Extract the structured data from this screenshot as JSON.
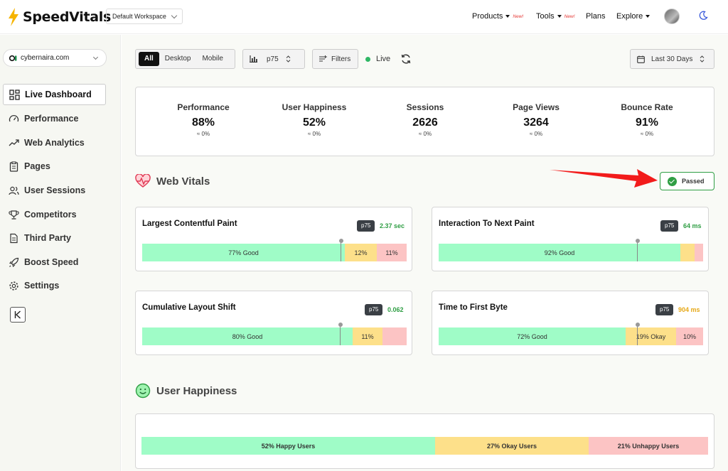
{
  "brand": {
    "name": "SpeedVitals"
  },
  "workspace": {
    "selected": "Default Workspace"
  },
  "nav": {
    "products": "Products",
    "products_badge": "New!",
    "tools": "Tools",
    "tools_badge": "New!",
    "plans": "Plans",
    "explore": "Explore"
  },
  "sidebar": {
    "site": "cybernaira.com",
    "items": [
      {
        "label": "Live Dashboard",
        "icon": "grid-icon"
      },
      {
        "label": "Performance",
        "icon": "gauge-icon"
      },
      {
        "label": "Web Analytics",
        "icon": "trend-icon"
      },
      {
        "label": "Pages",
        "icon": "clipboard-icon"
      },
      {
        "label": "User Sessions",
        "icon": "users-icon"
      },
      {
        "label": "Competitors",
        "icon": "trophy-icon"
      },
      {
        "label": "Third Party",
        "icon": "document-icon"
      },
      {
        "label": "Boost Speed",
        "icon": "rocket-icon"
      },
      {
        "label": "Settings",
        "icon": "gear-icon"
      }
    ]
  },
  "toolbar": {
    "device_tabs": [
      "All",
      "Desktop",
      "Mobile"
    ],
    "percentile": "p75",
    "filters": "Filters",
    "live": "Live",
    "date_range": "Last 30 Days"
  },
  "summary": [
    {
      "label": "Performance",
      "value": "88%",
      "delta": "≈ 0%"
    },
    {
      "label": "User Happiness",
      "value": "52%",
      "delta": "≈ 0%"
    },
    {
      "label": "Sessions",
      "value": "2626",
      "delta": "≈ 0%"
    },
    {
      "label": "Page Views",
      "value": "3264",
      "delta": "≈ 0%"
    },
    {
      "label": "Bounce Rate",
      "value": "91%",
      "delta": "≈ 0%"
    }
  ],
  "web_vitals": {
    "title": "Web Vitals",
    "status": "Passed",
    "status_color": "#2f9e44",
    "cards": [
      {
        "title": "Largest Contentful Paint",
        "percentile": "p75",
        "value": "2.37 sec",
        "value_color": "#2f9e44",
        "segments": [
          {
            "label": "77% Good",
            "pct": 77
          },
          {
            "label": "12%",
            "pct": 12
          },
          {
            "label": "11%",
            "pct": 11
          }
        ],
        "marker_pct": 75.8
      },
      {
        "title": "Interaction To Next Paint",
        "percentile": "p75",
        "value": "64 ms",
        "value_color": "#2f9e44",
        "segments": [
          {
            "label": "92% Good",
            "pct": 92
          },
          {
            "label": "",
            "pct": 5
          },
          {
            "label": "",
            "pct": 3
          }
        ],
        "marker_pct": 75.5
      },
      {
        "title": "Cumulative Layout Shift",
        "percentile": "p75",
        "value": "0.062",
        "value_color": "#2f9e44",
        "segments": [
          {
            "label": "80% Good",
            "pct": 80
          },
          {
            "label": "11%",
            "pct": 11
          },
          {
            "label": "",
            "pct": 9
          }
        ],
        "marker_pct": 75.8
      },
      {
        "title": "Time to First Byte",
        "percentile": "p75",
        "value": "904 ms",
        "value_color": "#e6a817",
        "segments": [
          {
            "label": "72% Good",
            "pct": 72
          },
          {
            "label": "19% Okay",
            "pct": 19
          },
          {
            "label": "10%",
            "pct": 10
          }
        ],
        "marker_pct": 76.5
      }
    ]
  },
  "user_happiness": {
    "title": "User Happiness",
    "segments": [
      {
        "label": "52% Happy Users",
        "pct": 52
      },
      {
        "label": "27% Okay Users",
        "pct": 27
      },
      {
        "label": "21% Unhappy Users",
        "pct": 21
      }
    ]
  }
}
